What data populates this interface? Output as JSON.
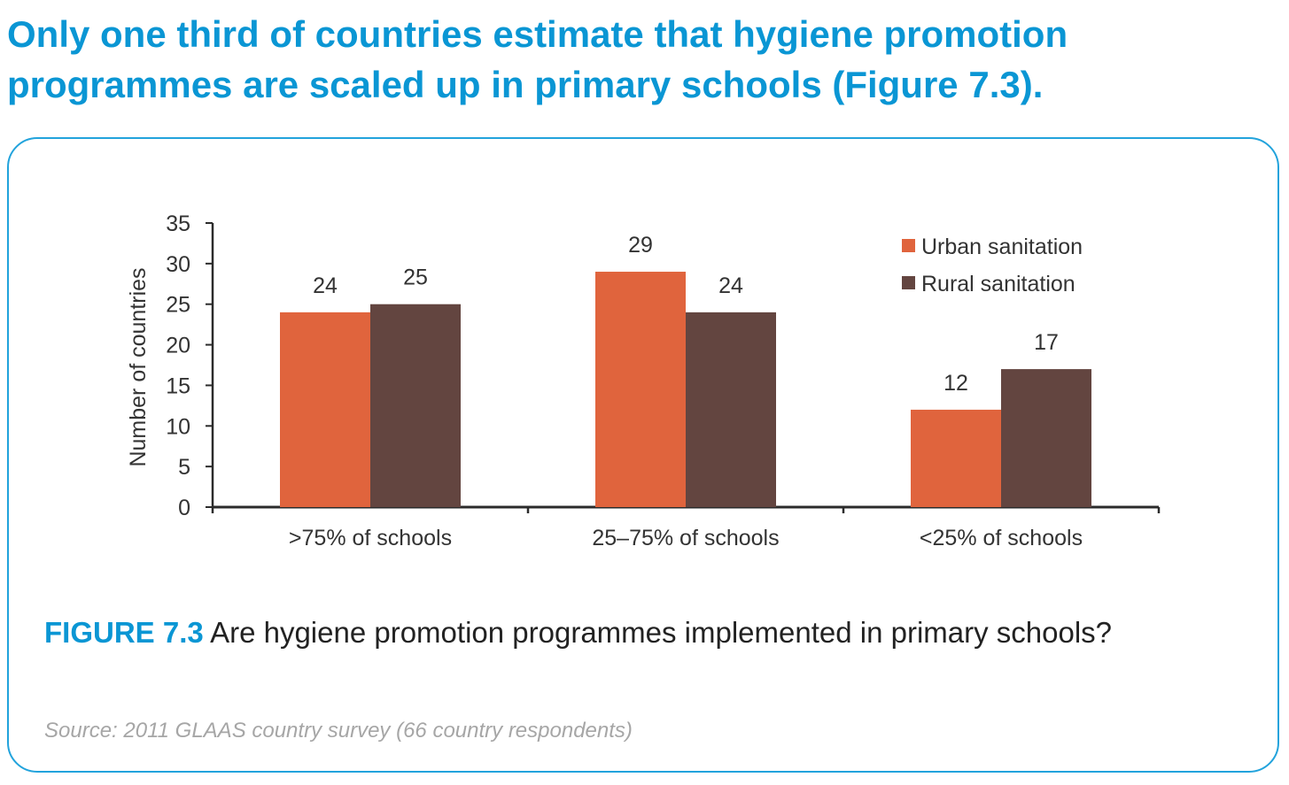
{
  "headline": "Only one third of countries estimate that hygiene promotion programmes are scaled up in primary schools (Figure 7.3).",
  "caption": {
    "figure_label": "FIGURE 7.3",
    "text": "Are hygiene promotion programmes implemented in primary schools?"
  },
  "source": "Source: 2011 GLAAS country survey (66 country respondents)",
  "colors": {
    "accent": "#0a96d4",
    "urban": "#e0643d",
    "rural": "#634540"
  },
  "chart_data": {
    "type": "bar",
    "categories": [
      ">75% of schools",
      "25–75% of schools",
      "<25% of schools"
    ],
    "series": [
      {
        "name": "Urban sanitation",
        "values": [
          24,
          29,
          12
        ],
        "color": "#e0643d"
      },
      {
        "name": "Rural sanitation",
        "values": [
          25,
          24,
          17
        ],
        "color": "#634540"
      }
    ],
    "ylabel": "Number of countries",
    "ylim": [
      0,
      35
    ],
    "yticks": [
      0,
      5,
      10,
      15,
      20,
      25,
      30,
      35
    ],
    "grid": false,
    "legend_position": "top-right",
    "data_labels": true
  }
}
